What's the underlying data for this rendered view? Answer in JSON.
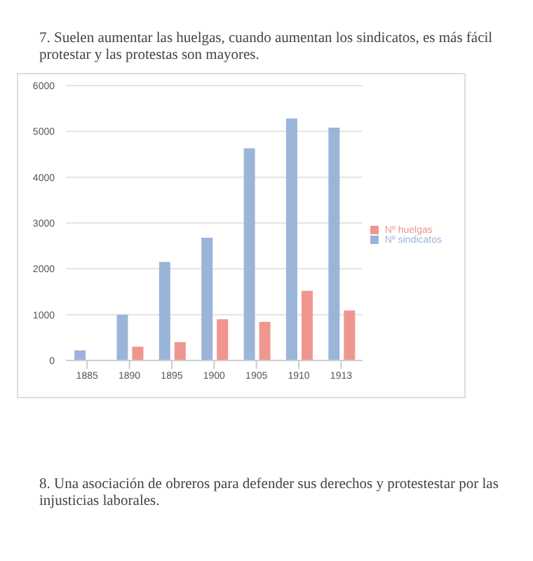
{
  "chart_data": {
    "type": "bar",
    "title": "7. Suelen aumentar las huelgas, cuando aumentan los sindicatos, es más fácil protestar y las protestas son mayores.",
    "annotations": [
      "8. Una asociación de obreros para defender sus derechos y protestestar por las injusticias laborales."
    ],
    "categories": [
      "1885",
      "1890",
      "1895",
      "1900",
      "1905",
      "1910",
      "1913"
    ],
    "series": [
      {
        "name": "Nº sindicatos",
        "color": "#9bb5d9",
        "values": [
          220,
          1000,
          2150,
          2680,
          4630,
          5280,
          5080
        ]
      },
      {
        "name": "Nº huelgas",
        "color": "#f0968e",
        "values": [
          null,
          300,
          400,
          900,
          840,
          1520,
          1090
        ]
      }
    ],
    "ylim": [
      0,
      6000
    ],
    "yticks": [
      0,
      1000,
      2000,
      3000,
      4000,
      5000,
      6000
    ],
    "grid": "y",
    "legend": "right"
  }
}
